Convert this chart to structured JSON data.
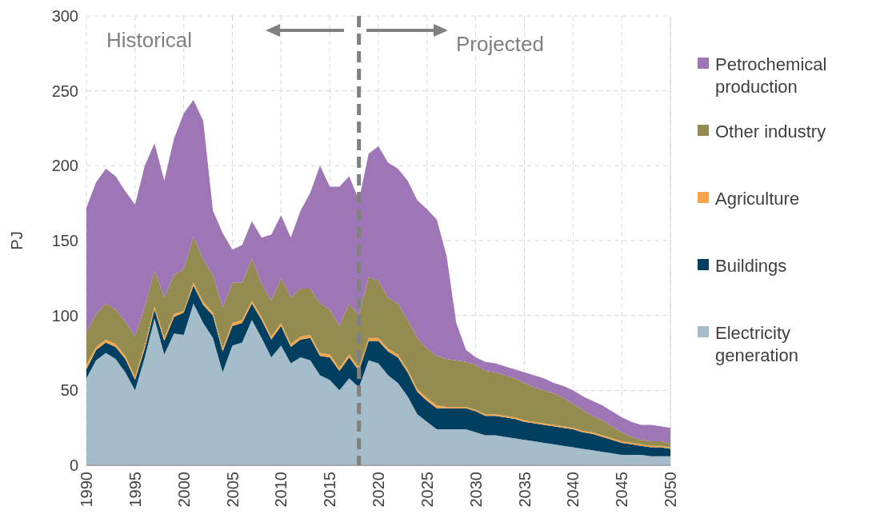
{
  "chart_data": {
    "type": "area",
    "stacked": true,
    "ylabel": "PJ",
    "x": [
      1990,
      1991,
      1992,
      1993,
      1994,
      1995,
      1996,
      1997,
      1998,
      1999,
      2000,
      2001,
      2002,
      2003,
      2004,
      2005,
      2006,
      2007,
      2008,
      2009,
      2010,
      2011,
      2012,
      2013,
      2014,
      2015,
      2016,
      2017,
      2018,
      2019,
      2020,
      2021,
      2022,
      2023,
      2024,
      2025,
      2026,
      2027,
      2028,
      2029,
      2030,
      2031,
      2032,
      2033,
      2034,
      2035,
      2036,
      2037,
      2038,
      2039,
      2040,
      2041,
      2042,
      2043,
      2044,
      2045,
      2046,
      2047,
      2048,
      2049,
      2050
    ],
    "series": [
      {
        "name": "Electricity generation",
        "color": "#a5bccb",
        "values": [
          58,
          70,
          75,
          71,
          62,
          50,
          72,
          98,
          74,
          88,
          87,
          108,
          95,
          85,
          62,
          80,
          82,
          97,
          85,
          72,
          80,
          68,
          72,
          70,
          60,
          57,
          50,
          58,
          52,
          70,
          68,
          60,
          55,
          46,
          34,
          29,
          24,
          24,
          24,
          24,
          22,
          20,
          20,
          19,
          18,
          17,
          16,
          15,
          14,
          13,
          12,
          11,
          10,
          9,
          8,
          7,
          7,
          7,
          6,
          6,
          6
        ]
      },
      {
        "name": "Buildings",
        "color": "#003f5f",
        "values": [
          6,
          7,
          7,
          8,
          9,
          7,
          6,
          6,
          9,
          11,
          15,
          12,
          12,
          15,
          14,
          13,
          13,
          11,
          12,
          12,
          13,
          11,
          12,
          15,
          13,
          15,
          13,
          14,
          11,
          13,
          15,
          16,
          17,
          16,
          15,
          14,
          14,
          14,
          14,
          14,
          14,
          13,
          13,
          13,
          13,
          12,
          12,
          12,
          12,
          12,
          12,
          11,
          11,
          10,
          9,
          8,
          7,
          6,
          6,
          6,
          5
        ]
      },
      {
        "name": "Agriculture",
        "color": "#f5a54a",
        "values": [
          3,
          2,
          2,
          2,
          2,
          2,
          2,
          2,
          2,
          2,
          1,
          2,
          2,
          2,
          2,
          2,
          2,
          2,
          2,
          2,
          2,
          2,
          2,
          2,
          2,
          2,
          2,
          2,
          2,
          2,
          2,
          2,
          2,
          2,
          2,
          2,
          2,
          1,
          1,
          1,
          1,
          1,
          1,
          1,
          1,
          1,
          1,
          1,
          1,
          1,
          1,
          1,
          1,
          1,
          1,
          1,
          1,
          1,
          1,
          1,
          1
        ]
      },
      {
        "name": "Other industry",
        "color": "#938b4f",
        "values": [
          22,
          22,
          24,
          23,
          23,
          27,
          26,
          24,
          27,
          26,
          28,
          31,
          28,
          25,
          27,
          27,
          25,
          28,
          22,
          24,
          30,
          31,
          32,
          31,
          33,
          30,
          28,
          34,
          35,
          41,
          38,
          34,
          34,
          33,
          34,
          33,
          33,
          32,
          31,
          30,
          30,
          29,
          28,
          27,
          26,
          25,
          23,
          22,
          21,
          19,
          16,
          14,
          11,
          10,
          8,
          6,
          4,
          3,
          3,
          3,
          3
        ]
      },
      {
        "name": "Petrochemical production",
        "color": "#9e75b5",
        "values": [
          83,
          88,
          90,
          89,
          87,
          88,
          94,
          85,
          78,
          91,
          104,
          91,
          93,
          43,
          50,
          22,
          25,
          25,
          31,
          44,
          42,
          40,
          52,
          64,
          92,
          82,
          93,
          85,
          77,
          82,
          90,
          90,
          90,
          93,
          92,
          93,
          91,
          69,
          25,
          8,
          5,
          6,
          6,
          6,
          6,
          7,
          8,
          8,
          7,
          8,
          9,
          9,
          10,
          10,
          10,
          10,
          10,
          10,
          11,
          10,
          10
        ]
      }
    ],
    "xlim": [
      1990,
      2050
    ],
    "xticks": [
      1990,
      1995,
      2000,
      2005,
      2010,
      2015,
      2020,
      2025,
      2030,
      2035,
      2040,
      2045,
      2050
    ],
    "ylim": [
      0,
      300
    ],
    "yticks": [
      0,
      50,
      100,
      150,
      200,
      250,
      300
    ],
    "grid": true,
    "legend": "right",
    "ref_lines": [
      {
        "axis": "x",
        "value": 2018,
        "color": "#808080",
        "line_style": "dashed"
      }
    ],
    "annotations": [
      "Historical",
      "Projected"
    ]
  }
}
